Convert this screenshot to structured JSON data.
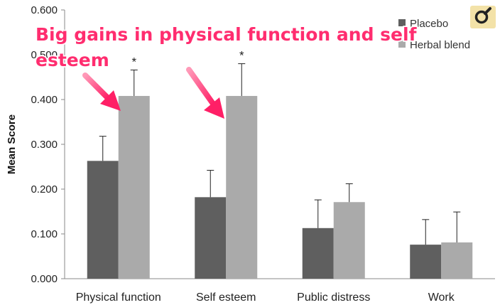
{
  "chart_data": {
    "type": "bar",
    "categories": [
      "Physical function",
      "Self esteem",
      "Public distress",
      "Work"
    ],
    "series": [
      {
        "name": "Placebo",
        "color": "#5f5f5f",
        "values": [
          0.263,
          0.182,
          0.113,
          0.076
        ],
        "error_upper": [
          0.318,
          0.242,
          0.176,
          0.132
        ]
      },
      {
        "name": "Herbal blend",
        "color": "#aaaaaa",
        "values": [
          0.408,
          0.408,
          0.171,
          0.081
        ],
        "error_upper": [
          0.466,
          0.48,
          0.212,
          0.149
        ]
      }
    ],
    "ylabel": "Mean Score",
    "ylim": [
      0,
      0.6
    ],
    "yticks": [
      "0.000",
      "0.100",
      "0.200",
      "0.300",
      "0.400",
      "0.500",
      "0.600"
    ],
    "significance": [
      {
        "category": "Physical function",
        "series": "Herbal blend",
        "mark": "*"
      },
      {
        "category": "Self esteem",
        "series": "Herbal blend",
        "mark": "*"
      }
    ],
    "legend_position": "top-right",
    "grid": false,
    "annotation": {
      "lines": [
        "Big gains in physical function and self",
        "esteem"
      ],
      "color": "#ff2d6f"
    }
  },
  "watermark_icon": "magnifier-logo-icon"
}
